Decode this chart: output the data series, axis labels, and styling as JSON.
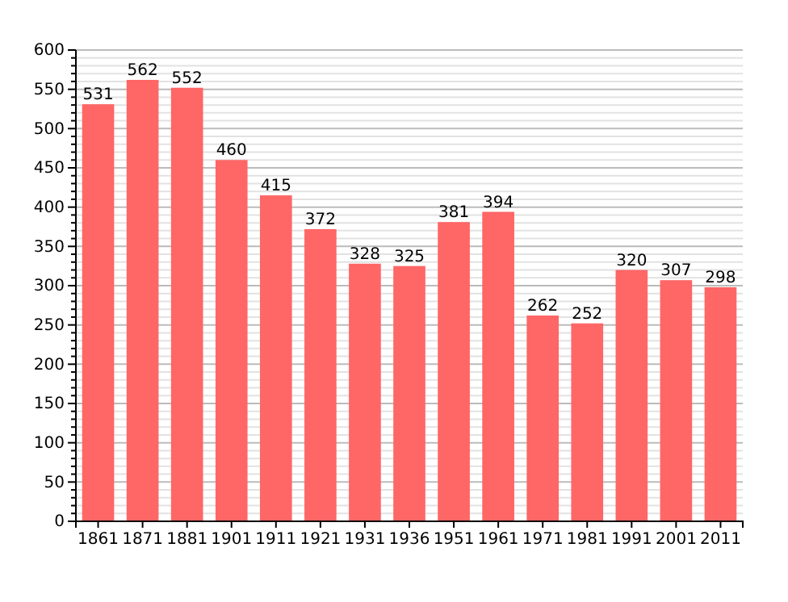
{
  "chart_data": {
    "type": "bar",
    "categories": [
      "1861",
      "1871",
      "1881",
      "1901",
      "1911",
      "1921",
      "1931",
      "1936",
      "1951",
      "1961",
      "1971",
      "1981",
      "1991",
      "2001",
      "2011"
    ],
    "values": [
      531,
      562,
      552,
      460,
      415,
      372,
      328,
      325,
      381,
      394,
      262,
      252,
      320,
      307,
      298
    ],
    "color": "#ff6666",
    "data_labels": true,
    "grid": "y",
    "ylim": [
      0,
      600
    ],
    "yticks": [
      0,
      {
        "value": 10,
        "label": null
      },
      {
        "value": 20,
        "label": null
      },
      {
        "value": 30,
        "label": null
      },
      {
        "value": 40,
        "label": null
      },
      50,
      {
        "value": 60,
        "label": null
      },
      {
        "value": 70,
        "label": null
      },
      {
        "value": 80,
        "label": null
      },
      {
        "value": 90,
        "label": null
      },
      100,
      {
        "value": 110,
        "label": null
      },
      {
        "value": 120,
        "label": null
      },
      {
        "value": 130,
        "label": null
      },
      {
        "value": 140,
        "label": null
      },
      150,
      {
        "value": 160,
        "label": null
      },
      {
        "value": 170,
        "label": null
      },
      {
        "value": 180,
        "label": null
      },
      {
        "value": 190,
        "label": null
      },
      200,
      {
        "value": 210,
        "label": null
      },
      {
        "value": 220,
        "label": null
      },
      {
        "value": 230,
        "label": null
      },
      {
        "value": 240,
        "label": null
      },
      250,
      {
        "value": 260,
        "label": null
      },
      {
        "value": 270,
        "label": null
      },
      {
        "value": 280,
        "label": null
      },
      {
        "value": 290,
        "label": null
      },
      300,
      {
        "value": 310,
        "label": null
      },
      {
        "value": 320,
        "label": null
      },
      {
        "value": 330,
        "label": null
      },
      {
        "value": 340,
        "label": null
      },
      350,
      {
        "value": 360,
        "label": null
      },
      {
        "value": 370,
        "label": null
      },
      {
        "value": 380,
        "label": null
      },
      {
        "value": 390,
        "label": null
      },
      400,
      {
        "value": 410,
        "label": null
      },
      {
        "value": 420,
        "label": null
      },
      {
        "value": 430,
        "label": null
      },
      {
        "value": 440,
        "label": null
      },
      450,
      {
        "value": 460,
        "label": null
      },
      {
        "value": 470,
        "label": null
      },
      {
        "value": 480,
        "label": null
      },
      {
        "value": 490,
        "label": null
      },
      500,
      {
        "value": 510,
        "label": null
      },
      {
        "value": 520,
        "label": null
      },
      {
        "value": 530,
        "label": null
      },
      {
        "value": 540,
        "label": null
      },
      550,
      {
        "value": 560,
        "label": null
      },
      {
        "value": 570,
        "label": null
      },
      {
        "value": 580,
        "label": null
      },
      {
        "value": 590,
        "label": null
      },
      600
    ]
  }
}
